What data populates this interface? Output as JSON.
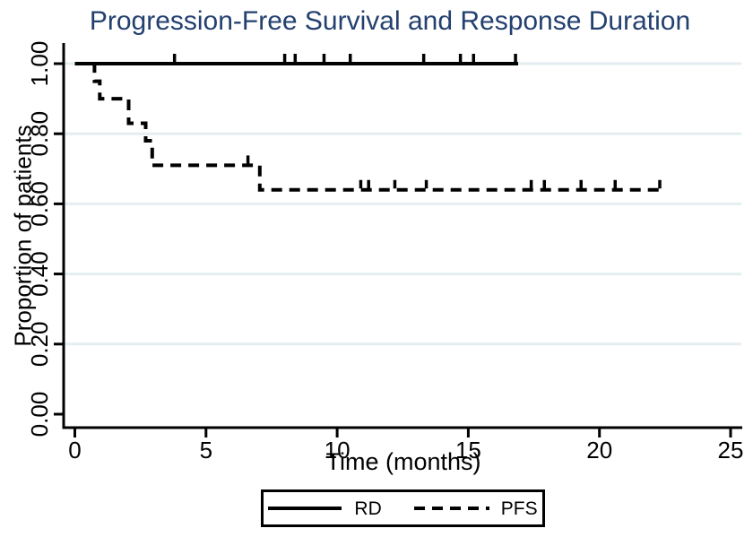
{
  "chart_data": {
    "type": "line",
    "subtype": "kaplan_meier_step",
    "title": "Progression-Free Survival and Response Duration",
    "xlabel": "Time (months)",
    "ylabel": "Proportion of patients",
    "xlim": [
      0,
      25
    ],
    "ylim": [
      0.0,
      1.0
    ],
    "xticks": [
      "0",
      "5",
      "10",
      "15",
      "20",
      "25"
    ],
    "yticks": [
      "0.00",
      "0.20",
      "0.40",
      "0.60",
      "0.80",
      "1.00"
    ],
    "grid": "horizontal-light",
    "legend_position": "bottom-center",
    "colors": {
      "title": "#23406f",
      "line": "#000000",
      "grid": "#e4eef0",
      "background": "#ffffff",
      "text": "#000000"
    },
    "series": [
      {
        "name": "RD",
        "line_style": "solid",
        "steps": [
          [
            0,
            1.0
          ]
        ],
        "end_time": 16.9,
        "censor_times": [
          3.8,
          8.0,
          8.4,
          9.5,
          10.5,
          13.3,
          14.7,
          15.2,
          16.8
        ]
      },
      {
        "name": "PFS",
        "line_style": "dashed",
        "steps": [
          [
            0,
            1.0
          ],
          [
            0.75,
            0.95
          ],
          [
            0.95,
            0.9
          ],
          [
            2.05,
            0.83
          ],
          [
            2.7,
            0.78
          ],
          [
            2.95,
            0.71
          ],
          [
            7.05,
            0.64
          ]
        ],
        "end_time": 22.3,
        "censor_times": [
          6.6,
          10.9,
          11.2,
          12.2,
          13.4,
          17.4,
          17.9,
          19.3,
          20.6,
          22.3
        ]
      }
    ],
    "legend": {
      "items": [
        {
          "label": "RD",
          "line_style": "solid"
        },
        {
          "label": "PFS",
          "line_style": "dashed"
        }
      ]
    }
  }
}
